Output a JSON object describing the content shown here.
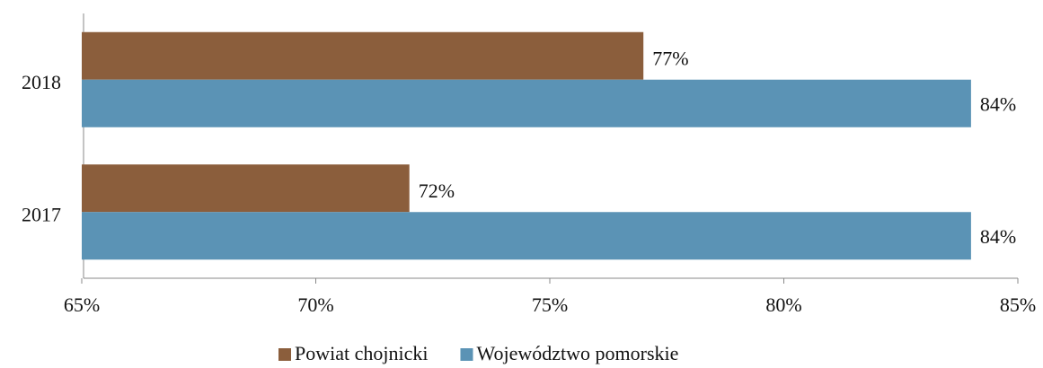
{
  "chart_data": {
    "type": "bar",
    "orientation": "horizontal",
    "categories": [
      "2017",
      "2018"
    ],
    "series": [
      {
        "name": "Powiat chojnicki",
        "color": "#8b5e3c",
        "values": [
          72,
          77
        ],
        "value_labels": [
          "72%",
          "77%"
        ]
      },
      {
        "name": "Województwo pomorskie",
        "color": "#5b93b5",
        "values": [
          84,
          84
        ],
        "value_labels": [
          "84%",
          "84%"
        ]
      }
    ],
    "xlim": [
      65,
      85
    ],
    "xticks": [
      {
        "value": 65,
        "label": "65%"
      },
      {
        "value": 70,
        "label": "70%"
      },
      {
        "value": 75,
        "label": "75%"
      },
      {
        "value": 80,
        "label": "80%"
      },
      {
        "value": 85,
        "label": "85%"
      }
    ],
    "legend": "bottom"
  }
}
